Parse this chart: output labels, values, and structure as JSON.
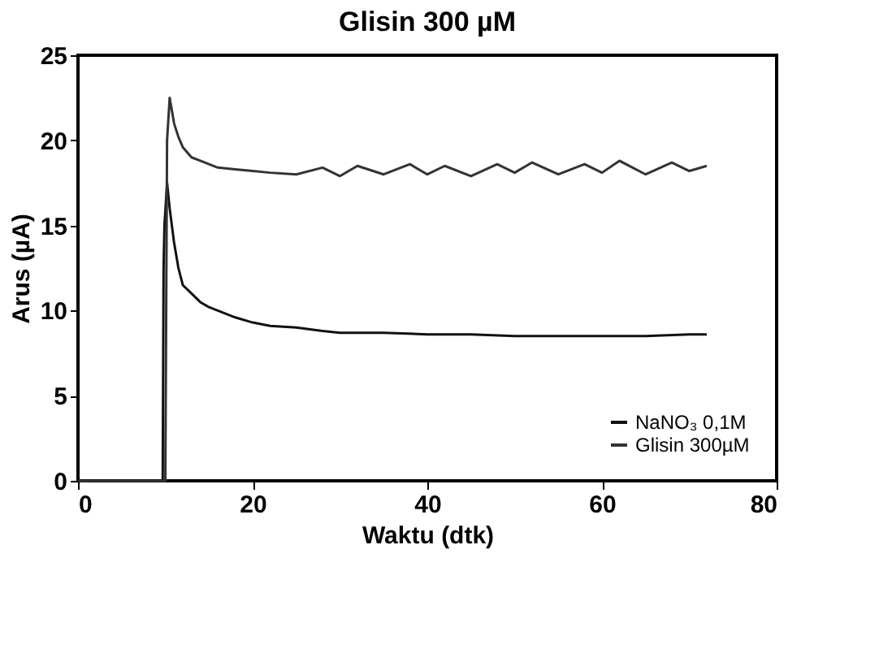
{
  "chart_data": {
    "type": "line",
    "title": "Glisin 300 µM",
    "xlabel": "Waktu (dtk)",
    "ylabel": "Arus (µA)",
    "xlim": [
      0,
      80
    ],
    "ylim": [
      0,
      25
    ],
    "xticks": [
      0,
      20,
      40,
      60,
      80
    ],
    "yticks": [
      0,
      5,
      10,
      15,
      20,
      25
    ],
    "grid": false,
    "legend": "bottom right",
    "marker": "none",
    "line_style": "solid",
    "series": [
      {
        "name": "NaNO₃ 0,1M",
        "color": "#111111",
        "x": [
          0,
          5,
          9.7,
          9.8,
          9.9,
          10.2,
          10.5,
          11,
          11.5,
          12,
          13,
          14,
          15,
          16,
          17,
          18,
          20,
          22,
          25,
          28,
          30,
          35,
          40,
          45,
          50,
          55,
          60,
          65,
          70,
          72
        ],
        "values": [
          0,
          0,
          0,
          12.5,
          15,
          17.5,
          16,
          14,
          12.5,
          11.5,
          11,
          10.5,
          10.2,
          10,
          9.8,
          9.6,
          9.3,
          9.1,
          9,
          8.8,
          8.7,
          8.7,
          8.6,
          8.6,
          8.5,
          8.5,
          8.5,
          8.5,
          8.6,
          8.6
        ]
      },
      {
        "name": "Glisin 300µM",
        "color": "#333333",
        "x": [
          0,
          5,
          10,
          10.2,
          10.5,
          11,
          11.5,
          12,
          13,
          14,
          15,
          16,
          18,
          20,
          22,
          25,
          28,
          30,
          32,
          35,
          38,
          40,
          42,
          45,
          48,
          50,
          52,
          55,
          58,
          60,
          62,
          65,
          68,
          70,
          72
        ],
        "values": [
          0,
          0,
          0,
          20,
          22.5,
          21,
          20.2,
          19.6,
          19,
          18.8,
          18.6,
          18.4,
          18.3,
          18.2,
          18.1,
          18,
          18.4,
          17.9,
          18.5,
          18,
          18.6,
          18,
          18.5,
          17.9,
          18.6,
          18.1,
          18.7,
          18,
          18.6,
          18.1,
          18.8,
          18,
          18.7,
          18.2,
          18.5
        ]
      }
    ]
  }
}
